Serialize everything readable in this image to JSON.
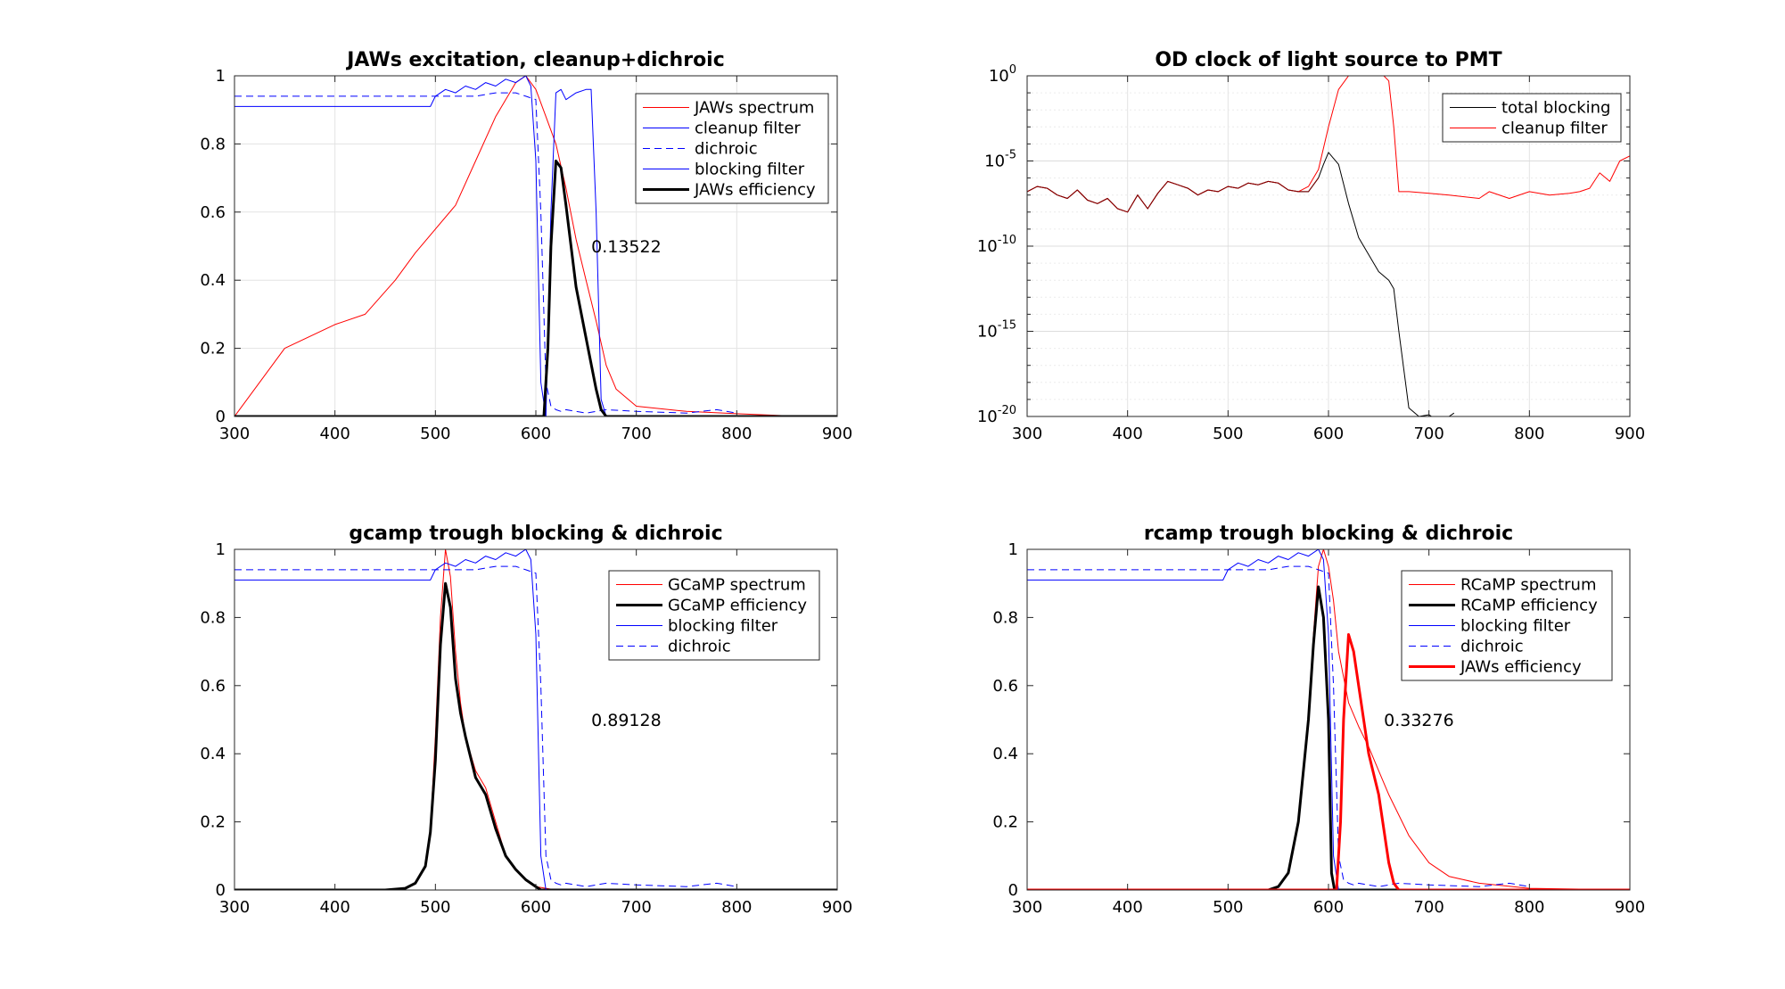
{
  "figure": {
    "background": "#ffffff"
  },
  "colors": {
    "red": "#ff0000",
    "blue": "#0000ff",
    "black": "#000000",
    "dark_red": "#7f0000"
  },
  "chart_data": [
    {
      "id": "p1",
      "type": "line",
      "title": "JAWs excitation, cleanup+dichroic",
      "xlim": [
        300,
        900
      ],
      "ylim": [
        0,
        1
      ],
      "yscale": "linear",
      "grid": true,
      "legend_position": "top-right",
      "xticks": [
        "300",
        "400",
        "500",
        "600",
        "700",
        "800",
        "900"
      ],
      "yticks": [
        "0",
        "0.2",
        "0.4",
        "0.6",
        "0.8",
        "1"
      ],
      "annotation": {
        "text": "0.13522",
        "x": 690,
        "y": 0.5
      },
      "series": [
        {
          "name": "JAWs spectrum",
          "color": "#ff0000",
          "width": 1,
          "dash": "none",
          "x": [
            300,
            350,
            400,
            430,
            460,
            480,
            500,
            520,
            540,
            560,
            580,
            590,
            600,
            610,
            620,
            630,
            640,
            650,
            660,
            670,
            680,
            700,
            750,
            800,
            850,
            900
          ],
          "y": [
            0,
            0.2,
            0.27,
            0.3,
            0.4,
            0.48,
            0.55,
            0.62,
            0.75,
            0.88,
            0.98,
            1.0,
            0.96,
            0.88,
            0.8,
            0.67,
            0.52,
            0.4,
            0.28,
            0.15,
            0.08,
            0.03,
            0.015,
            0.008,
            0.002,
            0
          ]
        },
        {
          "name": "cleanup filter",
          "color": "#0000ff",
          "width": 1,
          "dash": "none",
          "x": [
            300,
            495,
            500,
            510,
            520,
            530,
            540,
            550,
            560,
            570,
            580,
            590,
            595,
            600,
            605,
            610,
            620,
            900
          ],
          "y": [
            0.91,
            0.91,
            0.94,
            0.96,
            0.95,
            0.97,
            0.96,
            0.98,
            0.97,
            0.99,
            0.98,
            1.0,
            0.97,
            0.75,
            0.1,
            0,
            0,
            0
          ]
        },
        {
          "name": "dichroic",
          "color": "#0000ff",
          "width": 1,
          "dash": "8,5",
          "x": [
            300,
            500,
            520,
            540,
            560,
            580,
            590,
            600,
            605,
            610,
            615,
            620,
            625,
            630,
            650,
            670,
            700,
            750,
            780,
            800
          ],
          "y": [
            0.94,
            0.94,
            0.94,
            0.94,
            0.95,
            0.95,
            0.94,
            0.93,
            0.6,
            0.1,
            0.03,
            0.02,
            0.015,
            0.02,
            0.01,
            0.02,
            0.015,
            0.01,
            0.02,
            0.01
          ]
        },
        {
          "name": "blocking filter",
          "color": "#0000ff",
          "width": 1,
          "dash": "none",
          "x": [
            300,
            600,
            610,
            615,
            620,
            625,
            630,
            640,
            650,
            655,
            660,
            665,
            670,
            700,
            900
          ],
          "y": [
            0,
            0,
            0,
            0.6,
            0.95,
            0.96,
            0.93,
            0.95,
            0.96,
            0.96,
            0.6,
            0.05,
            0,
            0,
            0
          ]
        },
        {
          "name": "JAWs efficiency",
          "color": "#000000",
          "width": 3,
          "dash": "none",
          "x": [
            300,
            608,
            612,
            615,
            620,
            625,
            630,
            640,
            650,
            660,
            665,
            670,
            900
          ],
          "y": [
            0,
            0,
            0.2,
            0.5,
            0.75,
            0.73,
            0.62,
            0.38,
            0.23,
            0.08,
            0.02,
            0,
            0
          ]
        }
      ]
    },
    {
      "id": "p2",
      "type": "line",
      "title": "OD clock of light source to PMT",
      "xlim": [
        300,
        900
      ],
      "ylim": [
        1e-20,
        1
      ],
      "yscale": "log",
      "grid": true,
      "minor_grid": true,
      "legend_position": "top-right",
      "xticks": [
        "300",
        "400",
        "500",
        "600",
        "700",
        "800",
        "900"
      ],
      "yticks_exponents": [
        -20,
        -15,
        -10,
        -5,
        0
      ],
      "ytick_base": "10",
      "series": [
        {
          "name": "total blocking",
          "color": "#000000",
          "width": 1,
          "dash": "none",
          "x": [
            300,
            310,
            320,
            330,
            340,
            350,
            360,
            370,
            380,
            390,
            400,
            410,
            420,
            430,
            440,
            450,
            460,
            470,
            480,
            490,
            500,
            510,
            520,
            530,
            540,
            550,
            560,
            570,
            580,
            590,
            595,
            600,
            610,
            620,
            630,
            640,
            650,
            660,
            665,
            670,
            680,
            690,
            700,
            710,
            720,
            725
          ],
          "logy": [
            -6.8,
            -6.5,
            -6.6,
            -7.0,
            -7.2,
            -6.7,
            -7.3,
            -7.5,
            -7.2,
            -7.8,
            -8.0,
            -7.0,
            -7.8,
            -6.9,
            -6.2,
            -6.4,
            -6.6,
            -7.0,
            -6.7,
            -6.8,
            -6.5,
            -6.6,
            -6.3,
            -6.4,
            -6.2,
            -6.3,
            -6.7,
            -6.8,
            -6.8,
            -6.0,
            -5.2,
            -4.5,
            -5.2,
            -7.5,
            -9.5,
            -10.5,
            -11.5,
            -12.0,
            -12.5,
            -15.0,
            -19.5,
            -20.0,
            -19.9,
            -20.3,
            -20.0,
            -19.8
          ]
        },
        {
          "name": "cleanup filter",
          "color": "#ff0000",
          "width": 1,
          "dash": "none",
          "x": [
            300,
            310,
            320,
            330,
            340,
            350,
            360,
            370,
            380,
            390,
            400,
            410,
            420,
            430,
            440,
            450,
            460,
            470,
            480,
            490,
            500,
            510,
            520,
            530,
            540,
            550,
            560,
            570,
            580,
            590,
            600,
            610,
            620,
            630,
            640,
            650,
            655,
            660,
            665,
            670,
            680,
            700,
            720,
            750,
            760,
            780,
            800,
            820,
            840,
            850,
            860,
            870,
            880,
            890,
            900
          ],
          "logy": [
            -6.8,
            -6.5,
            -6.6,
            -7.0,
            -7.2,
            -6.7,
            -7.3,
            -7.5,
            -7.2,
            -7.8,
            -8.0,
            -7.0,
            -7.8,
            -6.9,
            -6.2,
            -6.4,
            -6.6,
            -7.0,
            -6.7,
            -6.8,
            -6.5,
            -6.6,
            -6.3,
            -6.4,
            -6.2,
            -6.3,
            -6.7,
            -6.8,
            -6.5,
            -5.5,
            -3.0,
            -0.8,
            0,
            0,
            0,
            0,
            0,
            -0.3,
            -3.0,
            -6.8,
            -6.8,
            -6.9,
            -7.0,
            -7.2,
            -6.8,
            -7.2,
            -6.8,
            -7.0,
            -6.9,
            -6.8,
            -6.6,
            -5.7,
            -6.2,
            -5.0,
            -4.7
          ]
        }
      ]
    },
    {
      "id": "p3",
      "type": "line",
      "title": "gcamp trough blocking & dichroic",
      "xlim": [
        300,
        900
      ],
      "ylim": [
        0,
        1
      ],
      "yscale": "linear",
      "grid": false,
      "legend_position": "top-right",
      "xticks": [
        "300",
        "400",
        "500",
        "600",
        "700",
        "800",
        "900"
      ],
      "yticks": [
        "0",
        "0.2",
        "0.4",
        "0.6",
        "0.8",
        "1"
      ],
      "annotation": {
        "text": "0.89128",
        "x": 690,
        "y": 0.5
      },
      "series": [
        {
          "name": "GCaMP spectrum",
          "color": "#ff0000",
          "width": 1,
          "dash": "none",
          "x": [
            300,
            450,
            470,
            480,
            490,
            495,
            500,
            505,
            510,
            515,
            520,
            525,
            530,
            540,
            550,
            560,
            570,
            580,
            590,
            600,
            610,
            620,
            700,
            900
          ],
          "y": [
            0,
            0,
            0.005,
            0.02,
            0.07,
            0.18,
            0.45,
            0.8,
            1.0,
            0.92,
            0.7,
            0.55,
            0.45,
            0.35,
            0.3,
            0.2,
            0.1,
            0.06,
            0.03,
            0.01,
            0.005,
            0,
            0,
            0
          ]
        },
        {
          "name": "GCaMP efficiency",
          "color": "#000000",
          "width": 3,
          "dash": "none",
          "x": [
            300,
            450,
            470,
            480,
            490,
            495,
            500,
            505,
            510,
            515,
            520,
            525,
            530,
            540,
            550,
            560,
            570,
            580,
            590,
            600,
            605,
            900
          ],
          "y": [
            0,
            0,
            0.005,
            0.02,
            0.07,
            0.17,
            0.38,
            0.72,
            0.9,
            0.83,
            0.62,
            0.52,
            0.45,
            0.33,
            0.28,
            0.18,
            0.1,
            0.06,
            0.03,
            0.01,
            0,
            0
          ]
        },
        {
          "name": "blocking filter",
          "color": "#0000ff",
          "width": 1,
          "dash": "none",
          "x": [
            300,
            495,
            500,
            510,
            520,
            530,
            540,
            550,
            560,
            570,
            580,
            590,
            595,
            600,
            605,
            610,
            900
          ],
          "y": [
            0.91,
            0.91,
            0.94,
            0.96,
            0.95,
            0.97,
            0.96,
            0.98,
            0.97,
            0.99,
            0.98,
            1.0,
            0.97,
            0.75,
            0.1,
            0,
            0
          ]
        },
        {
          "name": "dichroic",
          "color": "#0000ff",
          "width": 1,
          "dash": "8,5",
          "x": [
            300,
            500,
            520,
            540,
            560,
            580,
            590,
            600,
            605,
            610,
            615,
            620,
            625,
            630,
            650,
            670,
            700,
            750,
            780,
            800
          ],
          "y": [
            0.94,
            0.94,
            0.94,
            0.94,
            0.95,
            0.95,
            0.94,
            0.93,
            0.6,
            0.1,
            0.03,
            0.02,
            0.015,
            0.02,
            0.01,
            0.02,
            0.015,
            0.01,
            0.02,
            0.01
          ]
        }
      ]
    },
    {
      "id": "p4",
      "type": "line",
      "title": "rcamp trough blocking & dichroic",
      "xlim": [
        300,
        900
      ],
      "ylim": [
        0,
        1
      ],
      "yscale": "linear",
      "grid": false,
      "legend_position": "top-right",
      "xticks": [
        "300",
        "400",
        "500",
        "600",
        "700",
        "800",
        "900"
      ],
      "yticks": [
        "0",
        "0.2",
        "0.4",
        "0.6",
        "0.8",
        "1"
      ],
      "annotation": {
        "text": "0.33276",
        "x": 690,
        "y": 0.5
      },
      "series": [
        {
          "name": "RCaMP spectrum",
          "color": "#ff0000",
          "width": 1,
          "dash": "none",
          "x": [
            300,
            540,
            550,
            560,
            570,
            580,
            585,
            590,
            595,
            600,
            605,
            610,
            620,
            630,
            640,
            650,
            660,
            670,
            680,
            700,
            720,
            750,
            800,
            900
          ],
          "y": [
            0,
            0,
            0.01,
            0.05,
            0.2,
            0.5,
            0.75,
            0.95,
            1.0,
            0.95,
            0.85,
            0.7,
            0.55,
            0.48,
            0.42,
            0.35,
            0.28,
            0.22,
            0.16,
            0.08,
            0.04,
            0.02,
            0.005,
            0
          ]
        },
        {
          "name": "RCaMP efficiency",
          "color": "#000000",
          "width": 3,
          "dash": "none",
          "x": [
            300,
            540,
            550,
            560,
            570,
            580,
            585,
            590,
            595,
            600,
            603,
            606,
            900
          ],
          "y": [
            0,
            0,
            0.01,
            0.05,
            0.2,
            0.5,
            0.72,
            0.89,
            0.8,
            0.5,
            0.05,
            0,
            0
          ]
        },
        {
          "name": "blocking filter",
          "color": "#0000ff",
          "width": 1,
          "dash": "none",
          "x": [
            300,
            495,
            500,
            510,
            520,
            530,
            540,
            550,
            560,
            570,
            580,
            590,
            595,
            600,
            605,
            610,
            900
          ],
          "y": [
            0.91,
            0.91,
            0.94,
            0.96,
            0.95,
            0.97,
            0.96,
            0.98,
            0.97,
            0.99,
            0.98,
            1.0,
            0.97,
            0.75,
            0.1,
            0,
            0
          ]
        },
        {
          "name": "dichroic",
          "color": "#0000ff",
          "width": 1,
          "dash": "8,5",
          "x": [
            300,
            500,
            520,
            540,
            560,
            580,
            590,
            600,
            605,
            610,
            615,
            620,
            625,
            630,
            650,
            670,
            700,
            750,
            780,
            800
          ],
          "y": [
            0.94,
            0.94,
            0.94,
            0.94,
            0.95,
            0.95,
            0.94,
            0.93,
            0.6,
            0.1,
            0.03,
            0.02,
            0.015,
            0.02,
            0.01,
            0.02,
            0.015,
            0.01,
            0.02,
            0.01
          ]
        },
        {
          "name": "JAWs efficiency",
          "color": "#ff0000",
          "width": 3,
          "dash": "none",
          "x": [
            300,
            608,
            612,
            615,
            620,
            625,
            630,
            640,
            650,
            660,
            665,
            670,
            900
          ],
          "y": [
            0,
            0,
            0.2,
            0.5,
            0.75,
            0.7,
            0.6,
            0.4,
            0.28,
            0.08,
            0.02,
            0,
            0
          ]
        }
      ]
    }
  ]
}
